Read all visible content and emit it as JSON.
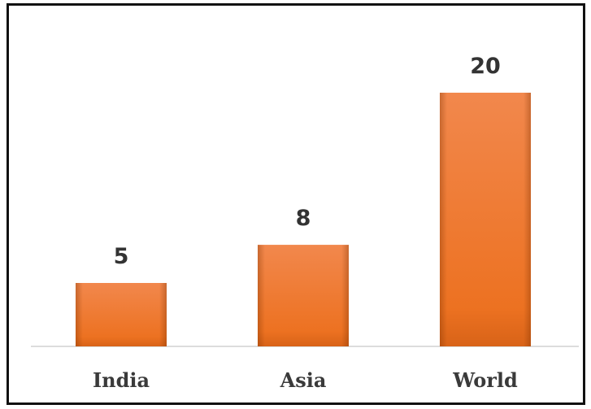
{
  "chart_data": {
    "type": "bar",
    "categories": [
      "India",
      "Asia",
      "World"
    ],
    "values": [
      5,
      8,
      20
    ],
    "color": "#ef7a2e"
  }
}
